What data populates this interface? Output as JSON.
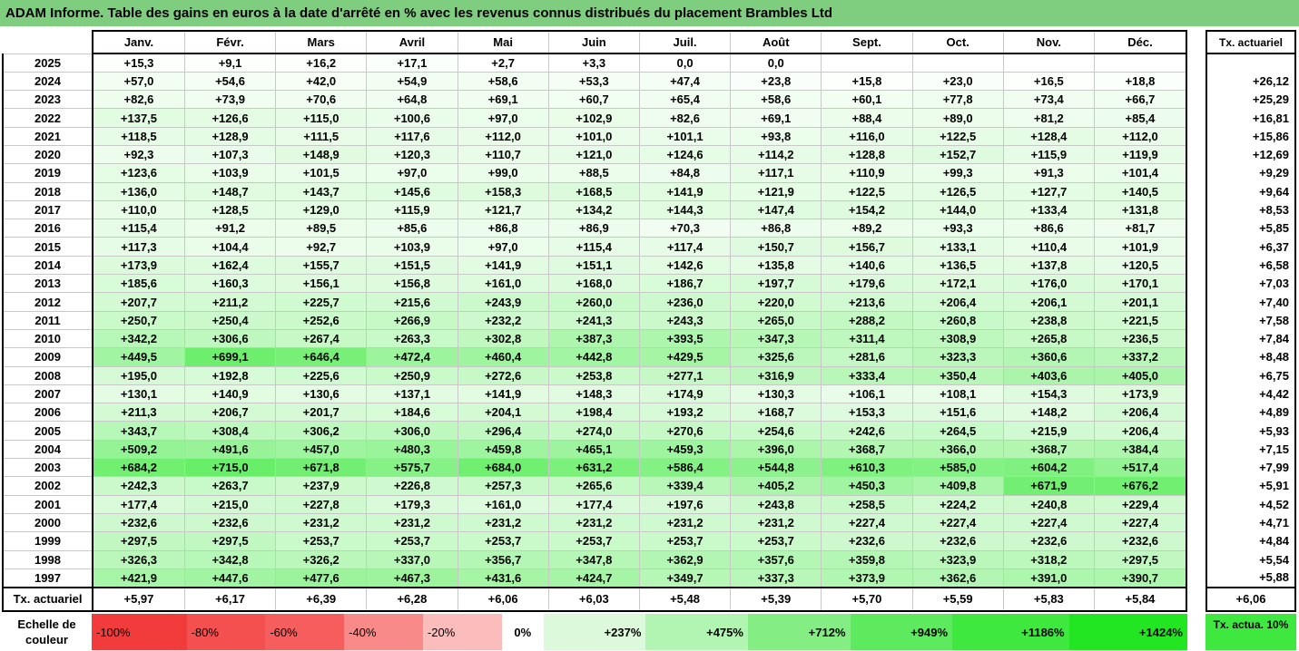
{
  "title": "ADAM Informe. Table des gains en euros à la date d'arrêté en % avec les revenus connus distribués du placement Brambles Ltd",
  "chart_data": {
    "type": "table",
    "columns": [
      "Janv.",
      "Févr.",
      "Mars",
      "Avril",
      "Mai",
      "Juin",
      "Juil.",
      "Août",
      "Sept.",
      "Oct.",
      "Nov.",
      "Déc."
    ],
    "rate_header": "Tx. actuariel",
    "rows": [
      {
        "year": "2025",
        "values": [
          "+15,3",
          "+9,1",
          "+16,2",
          "+17,1",
          "+2,7",
          "+3,3",
          "0,0",
          "0,0",
          "",
          "",
          "",
          ""
        ],
        "rate": ""
      },
      {
        "year": "2024",
        "values": [
          "+57,0",
          "+54,6",
          "+42,0",
          "+54,9",
          "+58,6",
          "+53,3",
          "+47,4",
          "+23,8",
          "+15,8",
          "+23,0",
          "+16,5",
          "+18,8"
        ],
        "rate": "+26,12"
      },
      {
        "year": "2023",
        "values": [
          "+82,6",
          "+73,9",
          "+70,6",
          "+64,8",
          "+69,1",
          "+60,7",
          "+65,4",
          "+58,6",
          "+60,1",
          "+77,8",
          "+73,4",
          "+66,7"
        ],
        "rate": "+25,29"
      },
      {
        "year": "2022",
        "values": [
          "+137,5",
          "+126,6",
          "+115,0",
          "+100,6",
          "+97,0",
          "+102,9",
          "+82,6",
          "+69,1",
          "+88,4",
          "+89,0",
          "+81,2",
          "+85,4"
        ],
        "rate": "+16,81"
      },
      {
        "year": "2021",
        "values": [
          "+118,5",
          "+128,9",
          "+111,5",
          "+117,6",
          "+112,0",
          "+101,0",
          "+101,1",
          "+93,8",
          "+116,0",
          "+122,5",
          "+128,4",
          "+112,0"
        ],
        "rate": "+15,86"
      },
      {
        "year": "2020",
        "values": [
          "+92,3",
          "+107,3",
          "+148,9",
          "+120,3",
          "+110,7",
          "+121,0",
          "+124,6",
          "+114,2",
          "+128,8",
          "+152,7",
          "+115,9",
          "+119,9"
        ],
        "rate": "+12,69"
      },
      {
        "year": "2019",
        "values": [
          "+123,6",
          "+103,9",
          "+101,5",
          "+97,0",
          "+99,0",
          "+88,5",
          "+84,8",
          "+117,1",
          "+110,9",
          "+99,3",
          "+91,3",
          "+101,4"
        ],
        "rate": "+9,29"
      },
      {
        "year": "2018",
        "values": [
          "+136,0",
          "+148,7",
          "+143,7",
          "+145,6",
          "+158,3",
          "+168,5",
          "+141,9",
          "+121,9",
          "+122,5",
          "+126,5",
          "+127,7",
          "+140,5"
        ],
        "rate": "+9,64"
      },
      {
        "year": "2017",
        "values": [
          "+110,0",
          "+128,5",
          "+129,0",
          "+115,9",
          "+121,7",
          "+134,2",
          "+144,3",
          "+147,4",
          "+154,2",
          "+144,0",
          "+133,4",
          "+131,8"
        ],
        "rate": "+8,53"
      },
      {
        "year": "2016",
        "values": [
          "+115,4",
          "+91,2",
          "+89,5",
          "+85,6",
          "+86,8",
          "+86,9",
          "+70,3",
          "+86,8",
          "+89,2",
          "+93,3",
          "+86,6",
          "+81,7"
        ],
        "rate": "+5,85"
      },
      {
        "year": "2015",
        "values": [
          "+117,3",
          "+104,4",
          "+92,7",
          "+103,9",
          "+97,0",
          "+115,4",
          "+117,4",
          "+150,7",
          "+156,7",
          "+133,1",
          "+110,4",
          "+101,9"
        ],
        "rate": "+6,37"
      },
      {
        "year": "2014",
        "values": [
          "+173,9",
          "+162,4",
          "+155,7",
          "+151,5",
          "+141,9",
          "+151,1",
          "+142,6",
          "+135,8",
          "+140,6",
          "+136,5",
          "+137,8",
          "+120,5"
        ],
        "rate": "+6,58"
      },
      {
        "year": "2013",
        "values": [
          "+185,6",
          "+160,3",
          "+156,1",
          "+156,8",
          "+161,0",
          "+168,0",
          "+186,7",
          "+197,7",
          "+179,6",
          "+172,1",
          "+176,0",
          "+170,1"
        ],
        "rate": "+7,03"
      },
      {
        "year": "2012",
        "values": [
          "+207,7",
          "+211,2",
          "+225,7",
          "+215,6",
          "+243,9",
          "+260,0",
          "+236,0",
          "+220,0",
          "+213,6",
          "+206,4",
          "+206,1",
          "+201,1"
        ],
        "rate": "+7,40"
      },
      {
        "year": "2011",
        "values": [
          "+250,7",
          "+250,4",
          "+252,6",
          "+266,9",
          "+232,2",
          "+241,3",
          "+243,3",
          "+265,0",
          "+288,2",
          "+260,8",
          "+238,8",
          "+221,5"
        ],
        "rate": "+7,58"
      },
      {
        "year": "2010",
        "values": [
          "+342,2",
          "+306,6",
          "+267,4",
          "+263,3",
          "+302,8",
          "+387,3",
          "+393,5",
          "+347,3",
          "+311,4",
          "+308,9",
          "+265,8",
          "+236,5"
        ],
        "rate": "+7,84"
      },
      {
        "year": "2009",
        "values": [
          "+449,5",
          "+699,1",
          "+646,4",
          "+472,4",
          "+460,4",
          "+442,8",
          "+429,5",
          "+325,6",
          "+281,6",
          "+323,3",
          "+360,6",
          "+337,2"
        ],
        "rate": "+8,48"
      },
      {
        "year": "2008",
        "values": [
          "+195,0",
          "+192,8",
          "+225,6",
          "+250,9",
          "+272,6",
          "+253,8",
          "+277,1",
          "+316,9",
          "+333,4",
          "+350,4",
          "+403,6",
          "+405,0"
        ],
        "rate": "+6,75"
      },
      {
        "year": "2007",
        "values": [
          "+130,1",
          "+140,9",
          "+130,6",
          "+137,1",
          "+141,9",
          "+148,3",
          "+174,9",
          "+130,3",
          "+106,1",
          "+108,1",
          "+154,3",
          "+173,9"
        ],
        "rate": "+4,42"
      },
      {
        "year": "2006",
        "values": [
          "+211,3",
          "+206,7",
          "+201,7",
          "+184,6",
          "+204,1",
          "+198,4",
          "+193,2",
          "+168,7",
          "+153,3",
          "+151,6",
          "+148,2",
          "+206,4"
        ],
        "rate": "+4,89"
      },
      {
        "year": "2005",
        "values": [
          "+343,7",
          "+308,4",
          "+306,2",
          "+306,0",
          "+296,4",
          "+274,0",
          "+270,6",
          "+254,6",
          "+242,6",
          "+264,5",
          "+215,9",
          "+206,4"
        ],
        "rate": "+5,93"
      },
      {
        "year": "2004",
        "values": [
          "+509,2",
          "+491,6",
          "+457,0",
          "+480,3",
          "+459,8",
          "+465,1",
          "+459,3",
          "+396,0",
          "+368,7",
          "+366,0",
          "+368,7",
          "+384,4"
        ],
        "rate": "+7,15"
      },
      {
        "year": "2003",
        "values": [
          "+684,2",
          "+715,0",
          "+671,8",
          "+575,7",
          "+684,0",
          "+631,2",
          "+586,4",
          "+544,8",
          "+610,3",
          "+585,0",
          "+604,2",
          "+517,4"
        ],
        "rate": "+7,99"
      },
      {
        "year": "2002",
        "values": [
          "+242,3",
          "+263,7",
          "+237,9",
          "+226,8",
          "+257,3",
          "+265,6",
          "+339,4",
          "+405,2",
          "+450,3",
          "+409,8",
          "+671,9",
          "+676,2"
        ],
        "rate": "+5,91"
      },
      {
        "year": "2001",
        "values": [
          "+177,4",
          "+215,0",
          "+227,8",
          "+179,3",
          "+161,0",
          "+177,4",
          "+197,6",
          "+243,8",
          "+258,5",
          "+224,2",
          "+240,8",
          "+229,4"
        ],
        "rate": "+4,52"
      },
      {
        "year": "2000",
        "values": [
          "+232,6",
          "+232,6",
          "+231,2",
          "+231,2",
          "+231,2",
          "+231,2",
          "+231,2",
          "+231,2",
          "+227,4",
          "+227,4",
          "+227,4",
          "+227,4"
        ],
        "rate": "+4,71"
      },
      {
        "year": "1999",
        "values": [
          "+297,5",
          "+297,5",
          "+253,7",
          "+253,7",
          "+253,7",
          "+253,7",
          "+253,7",
          "+253,7",
          "+232,6",
          "+232,6",
          "+232,6",
          "+232,6"
        ],
        "rate": "+4,84"
      },
      {
        "year": "1998",
        "values": [
          "+326,3",
          "+342,8",
          "+326,2",
          "+337,0",
          "+356,7",
          "+347,8",
          "+362,9",
          "+357,6",
          "+359,8",
          "+323,9",
          "+318,2",
          "+297,5"
        ],
        "rate": "+5,54"
      },
      {
        "year": "1997",
        "values": [
          "+421,9",
          "+447,6",
          "+477,6",
          "+467,3",
          "+431,6",
          "+424,7",
          "+349,7",
          "+337,3",
          "+373,9",
          "+362,6",
          "+391,0",
          "+390,7"
        ],
        "rate": "+5,88"
      }
    ],
    "footer": {
      "label": "Tx. actuariel",
      "values": [
        "+5,97",
        "+6,17",
        "+6,39",
        "+6,28",
        "+6,06",
        "+6,03",
        "+5,48",
        "+5,39",
        "+5,70",
        "+5,59",
        "+5,83",
        "+5,84"
      ],
      "rate": "+6,06"
    },
    "color_scale": {
      "label": "Echelle de couleur",
      "steps": [
        {
          "text": "-100%",
          "color": "#f23c3c"
        },
        {
          "text": "-80%",
          "color": "#f45050"
        },
        {
          "text": "-60%",
          "color": "#f65e5e"
        },
        {
          "text": "-40%",
          "color": "#f88a8a"
        },
        {
          "text": "-20%",
          "color": "#fbbcbc"
        },
        {
          "text": "0%",
          "color": "#ffffff"
        },
        {
          "text": "+237%",
          "color": "#dcf9dc"
        },
        {
          "text": "+475%",
          "color": "#b2f4b2"
        },
        {
          "text": "+712%",
          "color": "#84ee84"
        },
        {
          "text": "+949%",
          "color": "#5eea5e"
        },
        {
          "text": "+1186%",
          "color": "#3ee83e"
        },
        {
          "text": "+1424%",
          "color": "#22e622"
        }
      ],
      "rate_text": "Tx. actua. 10%",
      "rate_color": "#3ee83e"
    }
  }
}
